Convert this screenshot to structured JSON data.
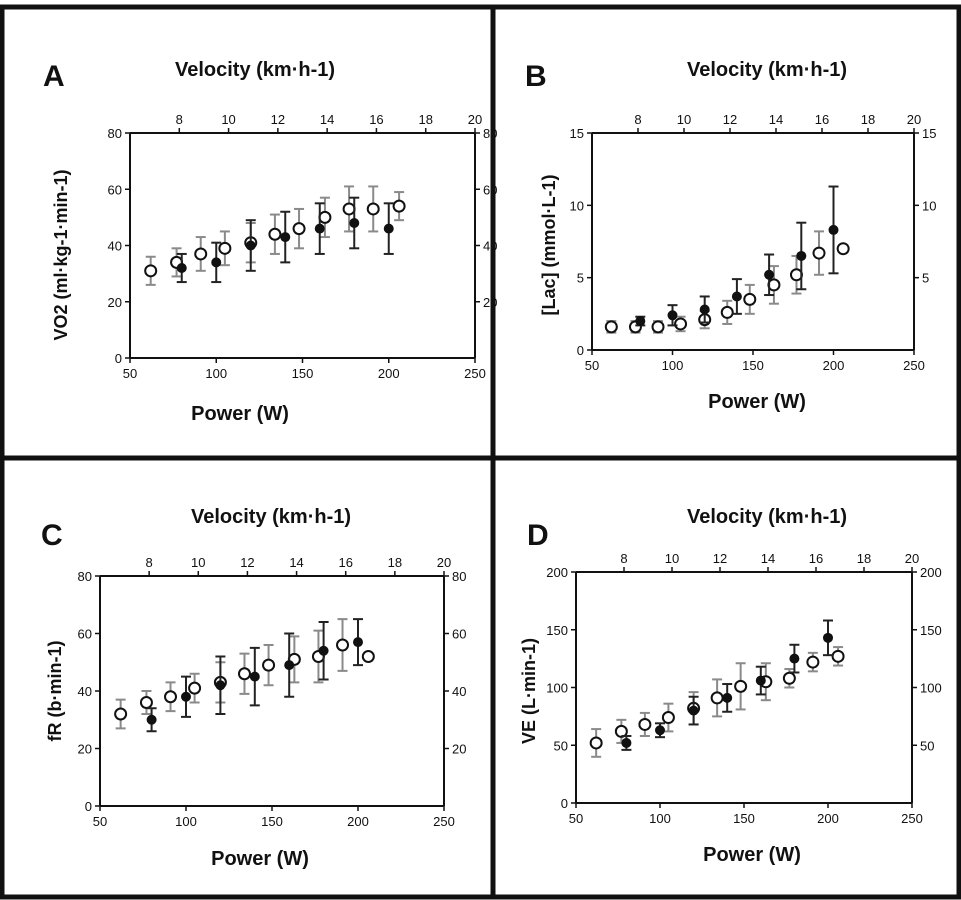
{
  "panels": [
    {
      "id": "A",
      "label": "A",
      "top_axis_title": "Velocity (km·h-1)",
      "x_axis_title": "Power (W)",
      "y_axis_title": "VO2 (ml·kg-1·min-1)"
    },
    {
      "id": "B",
      "label": "B",
      "top_axis_title": "Velocity (km·h-1)",
      "x_axis_title": "Power (W)",
      "y_axis_title": "[Lac] (mmol·L-1)"
    },
    {
      "id": "C",
      "label": "C",
      "top_axis_title": "Velocity (km·h-1)",
      "x_axis_title": "Power (W)",
      "y_axis_title": "fR (b·min-1)"
    },
    {
      "id": "D",
      "label": "D",
      "top_axis_title": "Velocity (km·h-1)",
      "x_axis_title": "Power (W)",
      "y_axis_title": "VE (L·min-1)"
    }
  ],
  "chart_data": [
    {
      "panel": "A",
      "type": "scatter",
      "title": "",
      "xlabel": "Power (W)",
      "x2label": "Velocity (km·h-1)",
      "ylabel": "VO2 (ml·kg-1·min-1)",
      "xlim": [
        50,
        250
      ],
      "x_ticks": [
        50,
        100,
        150,
        200,
        250
      ],
      "x2lim": [
        6,
        20
      ],
      "x2_ticks": [
        8,
        10,
        12,
        14,
        16,
        18,
        20
      ],
      "ylim": [
        0,
        80
      ],
      "y_ticks": [
        0,
        20,
        40,
        60,
        80
      ],
      "y2_ticks": [
        20,
        40,
        60,
        80
      ],
      "grid": false,
      "series": [
        {
          "marker": "open",
          "x": [
            62,
            77,
            91,
            105,
            120,
            134,
            148,
            163,
            177,
            191,
            206
          ],
          "y": [
            31,
            34,
            37,
            39,
            41,
            44,
            46,
            50,
            53,
            53,
            54
          ],
          "err": [
            5,
            5,
            6,
            6,
            7,
            7,
            7,
            7,
            8,
            8,
            5
          ]
        },
        {
          "marker": "filled",
          "x": [
            80,
            100,
            120,
            140,
            160,
            180,
            200
          ],
          "y": [
            32,
            34,
            40,
            43,
            46,
            48,
            46
          ],
          "err": [
            5,
            7,
            9,
            9,
            9,
            9,
            9
          ]
        }
      ]
    },
    {
      "panel": "B",
      "type": "scatter",
      "title": "",
      "xlabel": "Power (W)",
      "x2label": "Velocity (km·h-1)",
      "ylabel": "[Lac] (mmol·L-1)",
      "xlim": [
        50,
        250
      ],
      "x_ticks": [
        50,
        100,
        150,
        200,
        250
      ],
      "x2lim": [
        6,
        20
      ],
      "x2_ticks": [
        8,
        10,
        12,
        14,
        16,
        18,
        20
      ],
      "ylim": [
        0,
        15
      ],
      "y_ticks": [
        0,
        5,
        10,
        15
      ],
      "y2_ticks": [
        5,
        10,
        15
      ],
      "grid": false,
      "series": [
        {
          "marker": "open",
          "x": [
            62,
            77,
            91,
            105,
            120,
            134,
            148,
            163,
            177,
            191,
            206
          ],
          "y": [
            1.6,
            1.6,
            1.6,
            1.8,
            2.1,
            2.6,
            3.5,
            4.5,
            5.2,
            6.7,
            7.0
          ],
          "err": [
            0.4,
            0.4,
            0.4,
            0.5,
            0.6,
            0.8,
            1.0,
            1.3,
            1.3,
            1.5,
            0
          ]
        },
        {
          "marker": "filled",
          "x": [
            80,
            100,
            120,
            140,
            160,
            180,
            200
          ],
          "y": [
            2.0,
            2.4,
            2.8,
            3.7,
            5.2,
            6.5,
            8.3
          ],
          "err": [
            0.3,
            0.7,
            0.9,
            1.2,
            1.4,
            2.3,
            3.0
          ]
        }
      ]
    },
    {
      "panel": "C",
      "type": "scatter",
      "title": "",
      "xlabel": "Power (W)",
      "x2label": "Velocity (km·h-1)",
      "ylabel": "fR (b·min-1)",
      "xlim": [
        50,
        250
      ],
      "x_ticks": [
        50,
        100,
        150,
        200,
        250
      ],
      "x2lim": [
        6,
        20
      ],
      "x2_ticks": [
        8,
        10,
        12,
        14,
        16,
        18,
        20
      ],
      "ylim": [
        0,
        80
      ],
      "y_ticks": [
        0,
        20,
        40,
        60,
        80
      ],
      "y2_ticks": [
        20,
        40,
        60,
        80
      ],
      "grid": false,
      "series": [
        {
          "marker": "open",
          "x": [
            62,
            77,
            91,
            105,
            120,
            134,
            148,
            163,
            177,
            191,
            206
          ],
          "y": [
            32,
            36,
            38,
            41,
            43,
            46,
            49,
            51,
            52,
            56,
            52
          ],
          "err": [
            5,
            4,
            5,
            5,
            7,
            7,
            7,
            8,
            9,
            9,
            0
          ]
        },
        {
          "marker": "filled",
          "x": [
            80,
            100,
            120,
            140,
            160,
            180,
            200
          ],
          "y": [
            30,
            38,
            42,
            45,
            49,
            54,
            57
          ],
          "err": [
            4,
            7,
            10,
            10,
            11,
            10,
            8
          ]
        }
      ]
    },
    {
      "panel": "D",
      "type": "scatter",
      "title": "",
      "xlabel": "Power (W)",
      "x2label": "Velocity (km·h-1)",
      "ylabel": "VE (L·min-1)",
      "xlim": [
        50,
        250
      ],
      "x_ticks": [
        50,
        100,
        150,
        200,
        250
      ],
      "x2lim": [
        6,
        20
      ],
      "x2_ticks": [
        8,
        10,
        12,
        14,
        16,
        18,
        20
      ],
      "ylim": [
        0,
        200
      ],
      "y_ticks": [
        0,
        50,
        100,
        150,
        200
      ],
      "y2_ticks": [
        50,
        100,
        150,
        200
      ],
      "grid": false,
      "series": [
        {
          "marker": "open",
          "x": [
            62,
            77,
            91,
            105,
            120,
            134,
            148,
            163,
            177,
            191,
            206
          ],
          "y": [
            52,
            62,
            68,
            74,
            82,
            91,
            101,
            105,
            108,
            122,
            127
          ],
          "err": [
            12,
            10,
            10,
            12,
            14,
            16,
            20,
            16,
            8,
            8,
            8
          ]
        },
        {
          "marker": "filled",
          "x": [
            80,
            100,
            120,
            140,
            160,
            180,
            200
          ],
          "y": [
            52,
            63,
            80,
            91,
            106,
            125,
            143
          ],
          "err": [
            6,
            6,
            12,
            12,
            12,
            12,
            15
          ]
        }
      ]
    }
  ]
}
